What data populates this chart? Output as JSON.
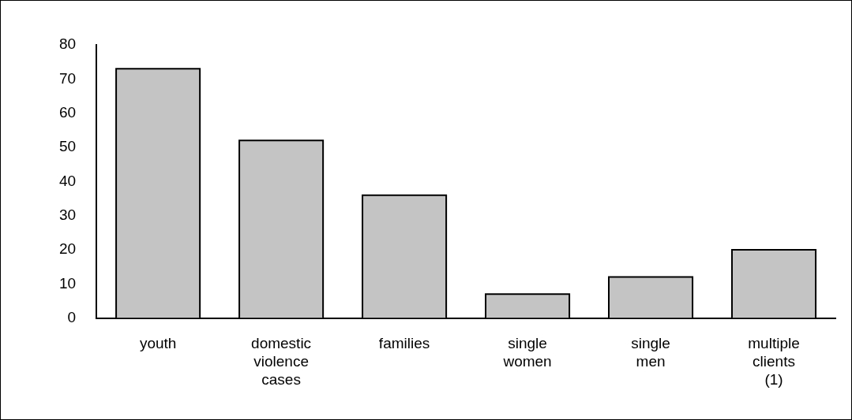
{
  "chart_data": {
    "type": "bar",
    "categories": [
      "youth",
      "domestic violence cases",
      "families",
      "single women",
      "single men",
      "multiple clients (1)"
    ],
    "values": [
      73,
      52,
      36,
      7,
      12,
      20
    ],
    "color": "#c4c4c4",
    "ylim": [
      0,
      80
    ],
    "yticks": [
      0,
      10,
      20,
      30,
      40,
      50,
      60,
      70,
      80
    ],
    "grid": false,
    "legend": false
  }
}
